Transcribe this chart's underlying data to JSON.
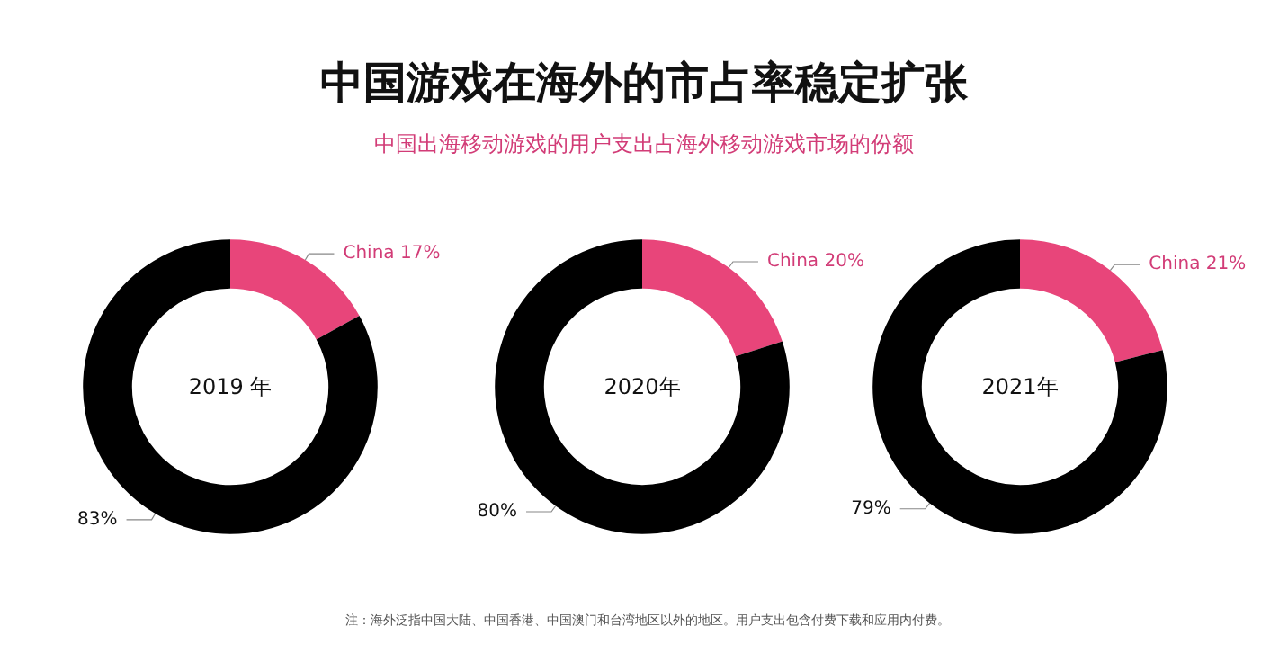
{
  "chart_data": [
    {
      "type": "donut",
      "categories": [
        "China",
        null
      ],
      "values": [
        17,
        83
      ],
      "colors": [
        "#e8457a",
        "#000000"
      ],
      "value_labels": [
        "17%",
        "83%"
      ],
      "annotations": [
        "2019 年"
      ]
    },
    {
      "type": "donut",
      "title": "中国游戏在海外的市占率稳定扩张",
      "subtitle": "中国出海移动游戏的用户支出占海外移动游戏市场的份额",
      "categories": [
        "China",
        null
      ],
      "values": [
        20,
        80
      ],
      "colors": [
        "#e8457a",
        "#000000"
      ],
      "value_labels": [
        "20%",
        "80%"
      ],
      "annotations": [
        "2020年"
      ]
    },
    {
      "type": "donut",
      "categories": [
        "China",
        null
      ],
      "values": [
        21,
        79
      ],
      "colors": [
        "#e8457a",
        "#000000"
      ],
      "value_labels": [
        "21%",
        "79%"
      ],
      "annotations": [
        "2021年",
        "注：海外泛指中国大陆、中国香港、中国澳门和台湾地区以外的地区。用户支出包含付费下载和应用内付费。"
      ]
    }
  ]
}
